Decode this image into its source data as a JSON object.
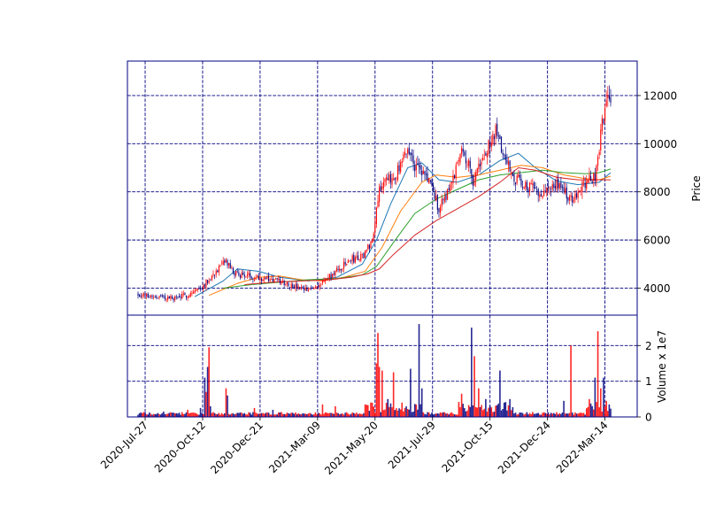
{
  "chart_data": {
    "type": "candlestick",
    "title": "",
    "colors": {
      "up": "#ff0000",
      "down": "#000080",
      "frame": "#000080",
      "grid": "#000080",
      "ma_short": "#1f77b4",
      "ma_mid": "#ff7f0e",
      "ma_long": "#2ca02c",
      "ma_longest": "#d62728"
    },
    "x_tick_labels": [
      "2020-Jul-27",
      "2020-Oct-12",
      "2020-Dec-21",
      "2021-Mar-09",
      "2021-May-20",
      "2021-Jul-29",
      "2021-Oct-15",
      "2021-Dec-24",
      "2022-Mar-14"
    ],
    "price_panel": {
      "ylabel": "Price",
      "ylim": [
        2880,
        13430
      ],
      "yticks": [
        4000,
        6000,
        8000,
        10000,
        12000
      ],
      "yaxis_side": "right",
      "grid": true,
      "close_keypoints": [
        [
          0,
          3750
        ],
        [
          12,
          3650
        ],
        [
          25,
          3580
        ],
        [
          35,
          3720
        ],
        [
          45,
          4050
        ],
        [
          55,
          4700
        ],
        [
          62,
          5100
        ],
        [
          68,
          4600
        ],
        [
          80,
          4500
        ],
        [
          95,
          4350
        ],
        [
          105,
          4200
        ],
        [
          115,
          3950
        ],
        [
          120,
          3900
        ],
        [
          130,
          4250
        ],
        [
          140,
          4700
        ],
        [
          150,
          5200
        ],
        [
          158,
          5300
        ],
        [
          165,
          6000
        ],
        [
          170,
          8200
        ],
        [
          178,
          8500
        ],
        [
          185,
          9000
        ],
        [
          190,
          9800
        ],
        [
          196,
          9000
        ],
        [
          205,
          8500
        ],
        [
          212,
          7300
        ],
        [
          222,
          8500
        ],
        [
          228,
          10000
        ],
        [
          236,
          8500
        ],
        [
          245,
          9600
        ],
        [
          252,
          10500
        ],
        [
          258,
          9500
        ],
        [
          265,
          8600
        ],
        [
          275,
          8200
        ],
        [
          285,
          8000
        ],
        [
          295,
          8300
        ],
        [
          305,
          7700
        ],
        [
          315,
          8400
        ],
        [
          322,
          8600
        ],
        [
          327,
          10800
        ],
        [
          330,
          11800
        ],
        [
          333,
          11500
        ]
      ],
      "moving_averages": [
        {
          "color_key": "ma_short",
          "points": [
            [
              40,
              3650
            ],
            [
              60,
              4300
            ],
            [
              70,
              4800
            ],
            [
              85,
              4700
            ],
            [
              100,
              4450
            ],
            [
              120,
              4300
            ],
            [
              140,
              4450
            ],
            [
              158,
              5000
            ],
            [
              168,
              6000
            ],
            [
              178,
              7500
            ],
            [
              190,
              9000
            ],
            [
              200,
              9200
            ],
            [
              212,
              8500
            ],
            [
              225,
              8400
            ],
            [
              240,
              8700
            ],
            [
              255,
              9300
            ],
            [
              268,
              9600
            ],
            [
              280,
              9000
            ],
            [
              295,
              8450
            ],
            [
              310,
              8300
            ],
            [
              325,
              8400
            ],
            [
              333,
              8800
            ]
          ]
        },
        {
          "color_key": "ma_mid",
          "points": [
            [
              50,
              3700
            ],
            [
              70,
              4200
            ],
            [
              85,
              4450
            ],
            [
              100,
              4500
            ],
            [
              115,
              4350
            ],
            [
              130,
              4300
            ],
            [
              145,
              4450
            ],
            [
              160,
              4700
            ],
            [
              172,
              5700
            ],
            [
              185,
              7200
            ],
            [
              200,
              8400
            ],
            [
              210,
              8700
            ],
            [
              225,
              8600
            ],
            [
              240,
              8700
            ],
            [
              255,
              8900
            ],
            [
              270,
              9100
            ],
            [
              285,
              9000
            ],
            [
              300,
              8700
            ],
            [
              315,
              8550
            ],
            [
              325,
              8500
            ],
            [
              333,
              8650
            ]
          ]
        },
        {
          "color_key": "ma_long",
          "points": [
            [
              60,
              4000
            ],
            [
              80,
              4150
            ],
            [
              100,
              4250
            ],
            [
              120,
              4350
            ],
            [
              140,
              4400
            ],
            [
              158,
              4550
            ],
            [
              168,
              4900
            ],
            [
              180,
              5900
            ],
            [
              195,
              7100
            ],
            [
              210,
              7700
            ],
            [
              225,
              8100
            ],
            [
              240,
              8500
            ],
            [
              255,
              8700
            ],
            [
              270,
              8800
            ],
            [
              285,
              8900
            ],
            [
              300,
              8800
            ],
            [
              315,
              8750
            ],
            [
              325,
              8800
            ],
            [
              333,
              8950
            ]
          ]
        },
        {
          "color_key": "ma_longest",
          "points": [
            [
              75,
              4150
            ],
            [
              95,
              4250
            ],
            [
              115,
              4300
            ],
            [
              135,
              4350
            ],
            [
              150,
              4450
            ],
            [
              162,
              4600
            ],
            [
              170,
              4800
            ],
            [
              180,
              5400
            ],
            [
              195,
              6200
            ],
            [
              210,
              6800
            ],
            [
              225,
              7300
            ],
            [
              240,
              7800
            ],
            [
              255,
              8400
            ],
            [
              268,
              9000
            ],
            [
              280,
              8900
            ],
            [
              295,
              8600
            ],
            [
              310,
              8500
            ],
            [
              325,
              8500
            ],
            [
              333,
              8500
            ]
          ]
        }
      ]
    },
    "volume_panel": {
      "ylabel": "Volume x 1e7",
      "ylim": [
        0,
        2.85
      ],
      "yticks": [
        0,
        1,
        2
      ],
      "yaxis_side": "right",
      "grid": true,
      "volume_peaks": [
        [
          18,
          0.15
        ],
        [
          35,
          0.2
        ],
        [
          41,
          0.1
        ],
        [
          44,
          0.25
        ],
        [
          47,
          1.1
        ],
        [
          48,
          0.7
        ],
        [
          49,
          1.4
        ],
        [
          50,
          1.95
        ],
        [
          51,
          0.3
        ],
        [
          62,
          0.8
        ],
        [
          63,
          0.6
        ],
        [
          82,
          0.25
        ],
        [
          95,
          0.2
        ],
        [
          130,
          0.35
        ],
        [
          139,
          0.3
        ],
        [
          160,
          0.35
        ],
        [
          165,
          0.4
        ],
        [
          168,
          1.5
        ],
        [
          169,
          2.35
        ],
        [
          170,
          1.4
        ],
        [
          172,
          1.3
        ],
        [
          176,
          0.5
        ],
        [
          180,
          1.25
        ],
        [
          186,
          0.4
        ],
        [
          192,
          1.35
        ],
        [
          198,
          2.6
        ],
        [
          200,
          0.8
        ],
        [
          228,
          0.65
        ],
        [
          235,
          2.5
        ],
        [
          237,
          1.7
        ],
        [
          240,
          0.8
        ],
        [
          245,
          0.5
        ],
        [
          255,
          1.3
        ],
        [
          258,
          0.4
        ],
        [
          262,
          0.5
        ],
        [
          300,
          0.45
        ],
        [
          305,
          2.0
        ],
        [
          318,
          0.5
        ],
        [
          322,
          1.1
        ],
        [
          324,
          2.4
        ],
        [
          326,
          0.8
        ],
        [
          328,
          1.1
        ],
        [
          330,
          0.45
        ],
        [
          332,
          0.35
        ]
      ]
    },
    "n_bars": 334,
    "seed": 7
  }
}
